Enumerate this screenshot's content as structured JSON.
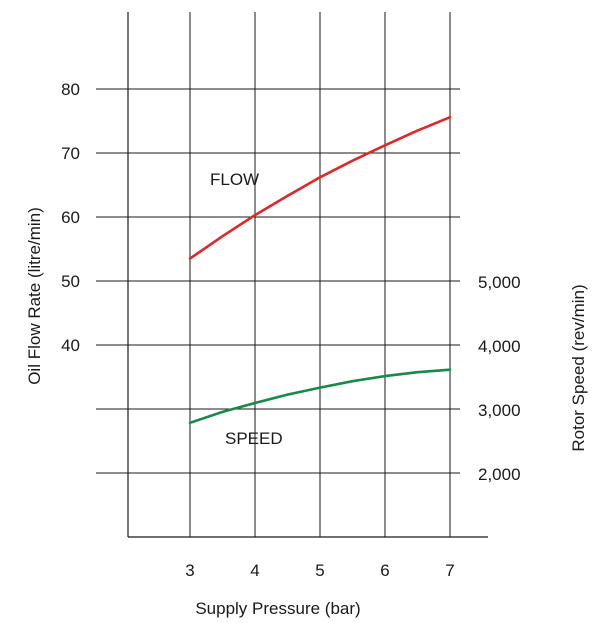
{
  "chart_data": {
    "type": "line",
    "xlabel": "Supply Pressure (bar)",
    "ylabel_left": "Oil Flow Rate (litre/min)",
    "ylabel_right": "Rotor Speed (rev/min)",
    "x_ticks": [
      "3",
      "4",
      "5",
      "6",
      "7"
    ],
    "y_left_ticks": [
      "40",
      "50",
      "60",
      "70",
      "80"
    ],
    "y_right_ticks": [
      "2,000",
      "3,000",
      "4,000",
      "5,000"
    ],
    "xlim": [
      2,
      7.5
    ],
    "ylim_left": [
      20,
      92
    ],
    "grid": true,
    "series": [
      {
        "name": "FLOW",
        "axis": "left",
        "color": "#e02828",
        "x": [
          3,
          3.5,
          4,
          4.5,
          5,
          5.5,
          6,
          6.5,
          7
        ],
        "y": [
          53.5,
          57,
          60.3,
          63.3,
          66.2,
          68.8,
          71.2,
          73.5,
          75.6
        ]
      },
      {
        "name": "SPEED",
        "axis": "right",
        "color": "#178a4a",
        "x": [
          3,
          3.5,
          4,
          4.5,
          5,
          5.5,
          6,
          6.5,
          7
        ],
        "y": [
          2800,
          2970,
          3110,
          3240,
          3350,
          3450,
          3530,
          3590,
          3630
        ]
      }
    ]
  }
}
